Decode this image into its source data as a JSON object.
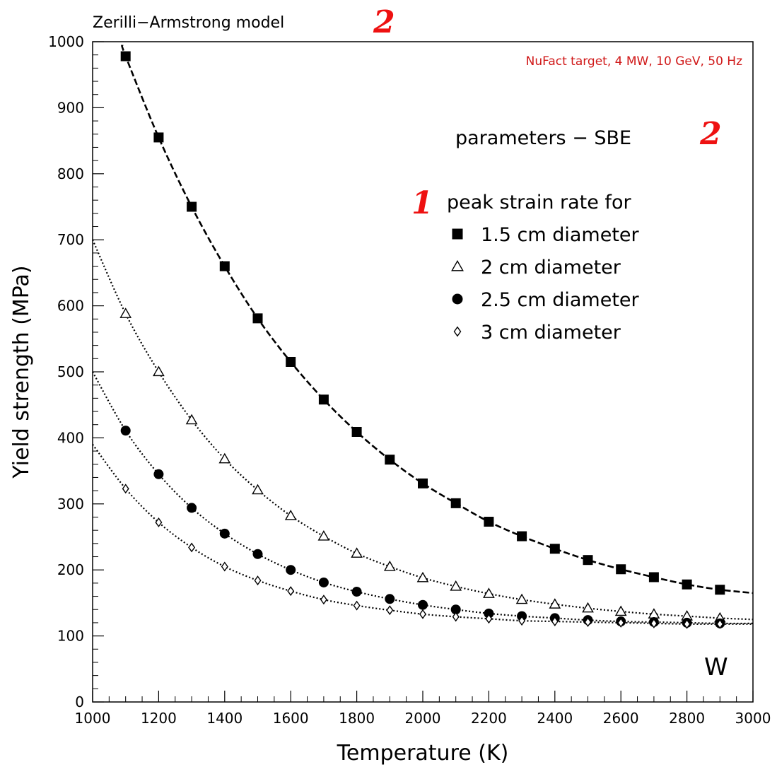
{
  "chart_data": {
    "type": "scatter",
    "title": "Zerilli−Armstrong model",
    "xlabel": "Temperature (K)",
    "ylabel": "Yield strength (MPa)",
    "xlim": [
      1000,
      3000
    ],
    "ylim": [
      0,
      1000
    ],
    "x_ticks": [
      "1000",
      "1200",
      "1400",
      "1600",
      "1800",
      "2000",
      "2200",
      "2400",
      "2600",
      "2800",
      "3000"
    ],
    "y_ticks": [
      "0",
      "100",
      "200",
      "300",
      "400",
      "500",
      "600",
      "700",
      "800",
      "900",
      "1000"
    ],
    "grid": false,
    "legend_position": "top-right",
    "annotations": {
      "title_mark": "2",
      "top_right_note": "NuFact target, 4 MW, 10 GeV, 50 Hz",
      "parameters": "parameters − SBE",
      "parameters_mark": "2",
      "legend_heading": "peak strain rate for",
      "legend_heading_mark": "1",
      "material": "W"
    },
    "series": [
      {
        "name": "1.5 cm diameter",
        "marker": "filled-square",
        "line_style": "dashed",
        "x": [
          1100,
          1200,
          1300,
          1400,
          1500,
          1600,
          1700,
          1800,
          1900,
          2000,
          2100,
          2200,
          2300,
          2400,
          2500,
          2600,
          2700,
          2800,
          2900
        ],
        "y": [
          978,
          855,
          750,
          660,
          581,
          515,
          458,
          409,
          367,
          331,
          301,
          273,
          251,
          232,
          215,
          201,
          189,
          178,
          170
        ],
        "curve_x": [
          1090,
          3000
        ],
        "curve_y": [
          995,
          165
        ]
      },
      {
        "name": "2 cm diameter",
        "marker": "open-triangle",
        "line_style": "dotted",
        "x": [
          1100,
          1200,
          1300,
          1400,
          1500,
          1600,
          1700,
          1800,
          1900,
          2000,
          2100,
          2200,
          2300,
          2400,
          2500,
          2600,
          2700,
          2800,
          2900
        ],
        "y": [
          588,
          500,
          427,
          368,
          321,
          282,
          251,
          225,
          205,
          188,
          175,
          164,
          155,
          148,
          142,
          137,
          133,
          130,
          127
        ],
        "curve_x": [
          1000,
          3000
        ],
        "curve_y": [
          700,
          125
        ]
      },
      {
        "name": "2.5 cm diameter",
        "marker": "filled-circle",
        "line_style": "dotted",
        "x": [
          1100,
          1200,
          1300,
          1400,
          1500,
          1600,
          1700,
          1800,
          1900,
          2000,
          2100,
          2200,
          2300,
          2400,
          2500,
          2600,
          2700,
          2800,
          2900
        ],
        "y": [
          411,
          345,
          294,
          255,
          224,
          200,
          181,
          167,
          156,
          147,
          140,
          134,
          130,
          127,
          124,
          122,
          121,
          120,
          119
        ],
        "curve_x": [
          1000,
          3000
        ],
        "curve_y": [
          500,
          119
        ]
      },
      {
        "name": "3 cm diameter",
        "marker": "open-diamond",
        "line_style": "dotted",
        "x": [
          1100,
          1200,
          1300,
          1400,
          1500,
          1600,
          1700,
          1800,
          1900,
          2000,
          2100,
          2200,
          2300,
          2400,
          2500,
          2600,
          2700,
          2800,
          2900
        ],
        "y": [
          323,
          272,
          234,
          205,
          184,
          168,
          155,
          146,
          139,
          133,
          129,
          126,
          123,
          122,
          121,
          120,
          119,
          118,
          118
        ],
        "curve_x": [
          1000,
          3000
        ],
        "curve_y": [
          390,
          118
        ]
      }
    ]
  }
}
